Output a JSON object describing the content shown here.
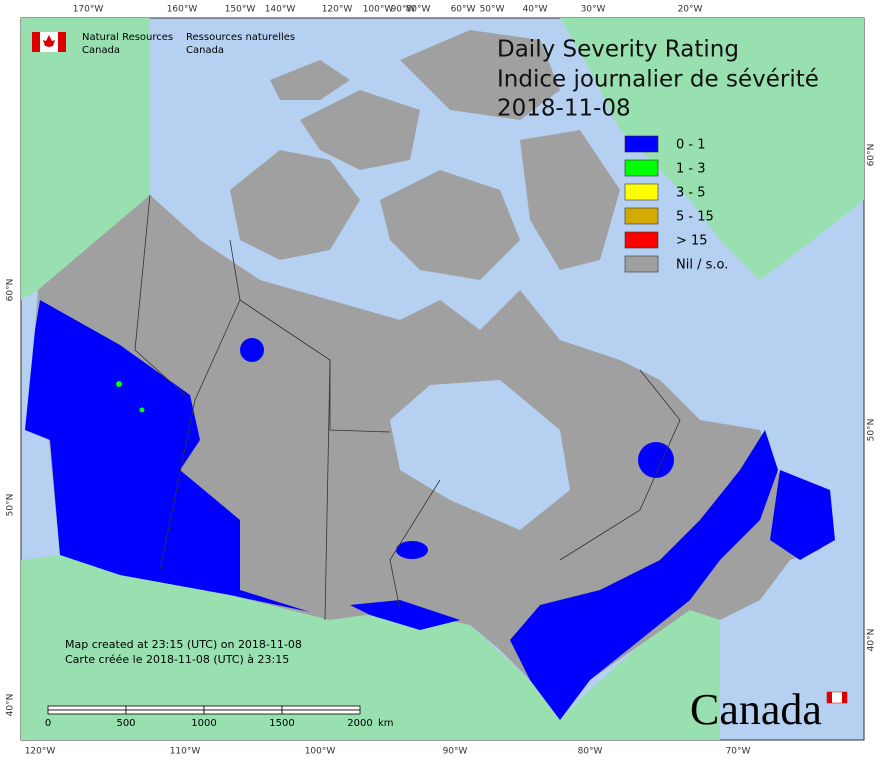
{
  "header": {
    "org_en": [
      "Natural Resources",
      "Canada"
    ],
    "org_fr": [
      "Ressources naturelles",
      "Canada"
    ]
  },
  "title": {
    "line1": "Daily Severity Rating",
    "line2": "Indice journalier de sévérité",
    "date": "2018-11-08"
  },
  "legend": [
    {
      "label": "0 - 1",
      "color": "#0000ff"
    },
    {
      "label": "1 - 3",
      "color": "#00ff00"
    },
    {
      "label": "3 - 5",
      "color": "#ffff00"
    },
    {
      "label": "5 - 15",
      "color": "#d4aa00"
    },
    {
      "label": "> 15",
      "color": "#ff0000"
    },
    {
      "label": "Nil / s.o.",
      "color": "#a0a0a0"
    }
  ],
  "graticule": {
    "top": [
      "170°W",
      "160°W",
      "150°W",
      "140°W",
      "120°W",
      "100°W",
      "90°W",
      "80°W",
      "60°W",
      "50°W",
      "40°W",
      "30°W",
      "20°W"
    ],
    "bottom": [
      "120°W",
      "110°W",
      "100°W",
      "90°W",
      "80°W",
      "70°W"
    ],
    "left": [
      "60°N",
      "50°N",
      "40°N"
    ],
    "right": [
      "60°N",
      "50°N",
      "40°N"
    ]
  },
  "credits": [
    "Map created at 23:15 (UTC) on 2018-11-08",
    "Carte créée le 2018-11-08 (UTC) à 23:15"
  ],
  "scale_bar": {
    "labels": [
      "0",
      "500",
      "1000",
      "1500",
      "2000"
    ],
    "unit": "km"
  },
  "wordmark": "Canada"
}
